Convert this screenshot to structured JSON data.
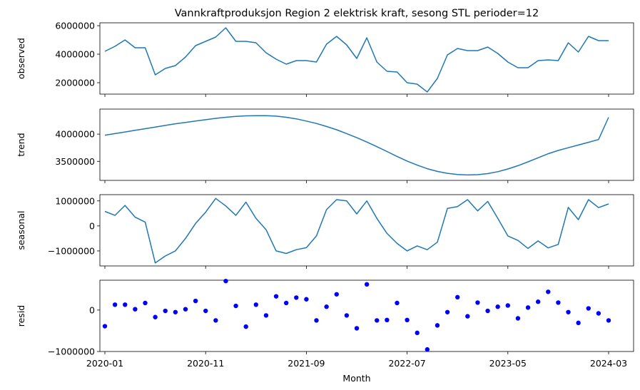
{
  "chart_data": {
    "type": "line",
    "title": "Vannkraftproduksjon Region 2 elektrisk kraft, sesong STL perioder=12",
    "xlabel": "Month",
    "x": [
      "2020-01",
      "2020-02",
      "2020-03",
      "2020-04",
      "2020-05",
      "2020-06",
      "2020-07",
      "2020-08",
      "2020-09",
      "2020-10",
      "2020-11",
      "2020-12",
      "2021-01",
      "2021-02",
      "2021-03",
      "2021-04",
      "2021-05",
      "2021-06",
      "2021-07",
      "2021-08",
      "2021-09",
      "2021-10",
      "2021-11",
      "2021-12",
      "2022-01",
      "2022-02",
      "2022-03",
      "2022-04",
      "2022-05",
      "2022-06",
      "2022-07",
      "2022-08",
      "2022-09",
      "2022-10",
      "2022-11",
      "2022-12",
      "2023-01",
      "2023-02",
      "2023-03",
      "2023-04",
      "2023-05",
      "2023-06",
      "2023-07",
      "2023-08",
      "2023-09",
      "2023-10",
      "2023-11",
      "2023-12",
      "2024-01",
      "2024-02",
      "2024-03"
    ],
    "xtick_labels": [
      "2020-01",
      "2020-11",
      "2021-09",
      "2022-07",
      "2023-05",
      "2024-03"
    ],
    "panels": [
      {
        "name": "observed",
        "ylabel": "observed",
        "style": "line",
        "color": "#1f77b4",
        "ylim": [
          1200000,
          6200000
        ],
        "yticks": [
          2000000,
          4000000,
          6000000
        ],
        "ytick_labels": [
          "2000000",
          "4000000",
          "6000000"
        ],
        "values": [
          4200000,
          4550000,
          5000000,
          4450000,
          4450000,
          2550000,
          3000000,
          3200000,
          3800000,
          4600000,
          4900000,
          5200000,
          5850000,
          4900000,
          4900000,
          4800000,
          4100000,
          3650000,
          3300000,
          3550000,
          3550000,
          3450000,
          4700000,
          5250000,
          4650000,
          3700000,
          5150000,
          3450000,
          2800000,
          2750000,
          2000000,
          1900000,
          1350000,
          2300000,
          3950000,
          4400000,
          4250000,
          4250000,
          4500000,
          4050000,
          3450000,
          3050000,
          3050000,
          3550000,
          3600000,
          3550000,
          4800000,
          4150000,
          5250000,
          4950000,
          4950000
        ]
      },
      {
        "name": "trend",
        "ylabel": "trend",
        "style": "line",
        "color": "#1f77b4",
        "ylim": [
          3150000,
          4460000
        ],
        "yticks": [
          3500000,
          4000000
        ],
        "ytick_labels": [
          "3500000",
          "4000000"
        ],
        "values": [
          3980000,
          4010000,
          4040000,
          4070000,
          4100000,
          4130000,
          4160000,
          4190000,
          4215000,
          4240000,
          4265000,
          4290000,
          4310000,
          4325000,
          4335000,
          4340000,
          4340000,
          4330000,
          4310000,
          4280000,
          4240000,
          4195000,
          4140000,
          4080000,
          4010000,
          3935000,
          3855000,
          3770000,
          3680000,
          3590000,
          3505000,
          3430000,
          3365000,
          3315000,
          3280000,
          3257000,
          3250000,
          3255000,
          3275000,
          3310000,
          3360000,
          3420000,
          3490000,
          3565000,
          3640000,
          3700000,
          3750000,
          3800000,
          3850000,
          3900000,
          4310000
        ]
      },
      {
        "name": "seasonal",
        "ylabel": "seasonal",
        "style": "line",
        "color": "#1f77b4",
        "ylim": [
          -1600000,
          1250000
        ],
        "yticks": [
          -1000000,
          0,
          1000000
        ],
        "ytick_labels": [
          "−1000000",
          "0",
          "1000000"
        ],
        "values": [
          580000,
          420000,
          820000,
          350000,
          150000,
          -1480000,
          -1200000,
          -1000000,
          -500000,
          100000,
          550000,
          1100000,
          800000,
          420000,
          950000,
          300000,
          -150000,
          -1000000,
          -1100000,
          -950000,
          -870000,
          -400000,
          650000,
          1050000,
          1000000,
          480000,
          1000000,
          300000,
          -300000,
          -700000,
          -1000000,
          -800000,
          -950000,
          -650000,
          700000,
          770000,
          1050000,
          600000,
          980000,
          300000,
          -400000,
          -580000,
          -900000,
          -600000,
          -880000,
          -740000,
          740000,
          250000,
          1050000,
          730000,
          880000
        ]
      },
      {
        "name": "resid",
        "ylabel": "resid",
        "style": "scatter",
        "color": "#0000ff",
        "ylim": [
          -1000000,
          720000
        ],
        "yticks": [
          -1000000,
          0
        ],
        "ytick_labels": [
          "−1000000",
          "0"
        ],
        "values": [
          -390000,
          130000,
          130000,
          20000,
          170000,
          -170000,
          -20000,
          -50000,
          20000,
          220000,
          -20000,
          -250000,
          700000,
          100000,
          -400000,
          130000,
          -130000,
          330000,
          170000,
          300000,
          260000,
          -250000,
          80000,
          380000,
          -130000,
          -440000,
          620000,
          -250000,
          -240000,
          170000,
          -240000,
          -550000,
          -950000,
          -370000,
          -50000,
          310000,
          -150000,
          180000,
          -20000,
          80000,
          110000,
          -200000,
          60000,
          200000,
          440000,
          180000,
          -50000,
          -310000,
          40000,
          -80000,
          -250000
        ]
      }
    ]
  }
}
